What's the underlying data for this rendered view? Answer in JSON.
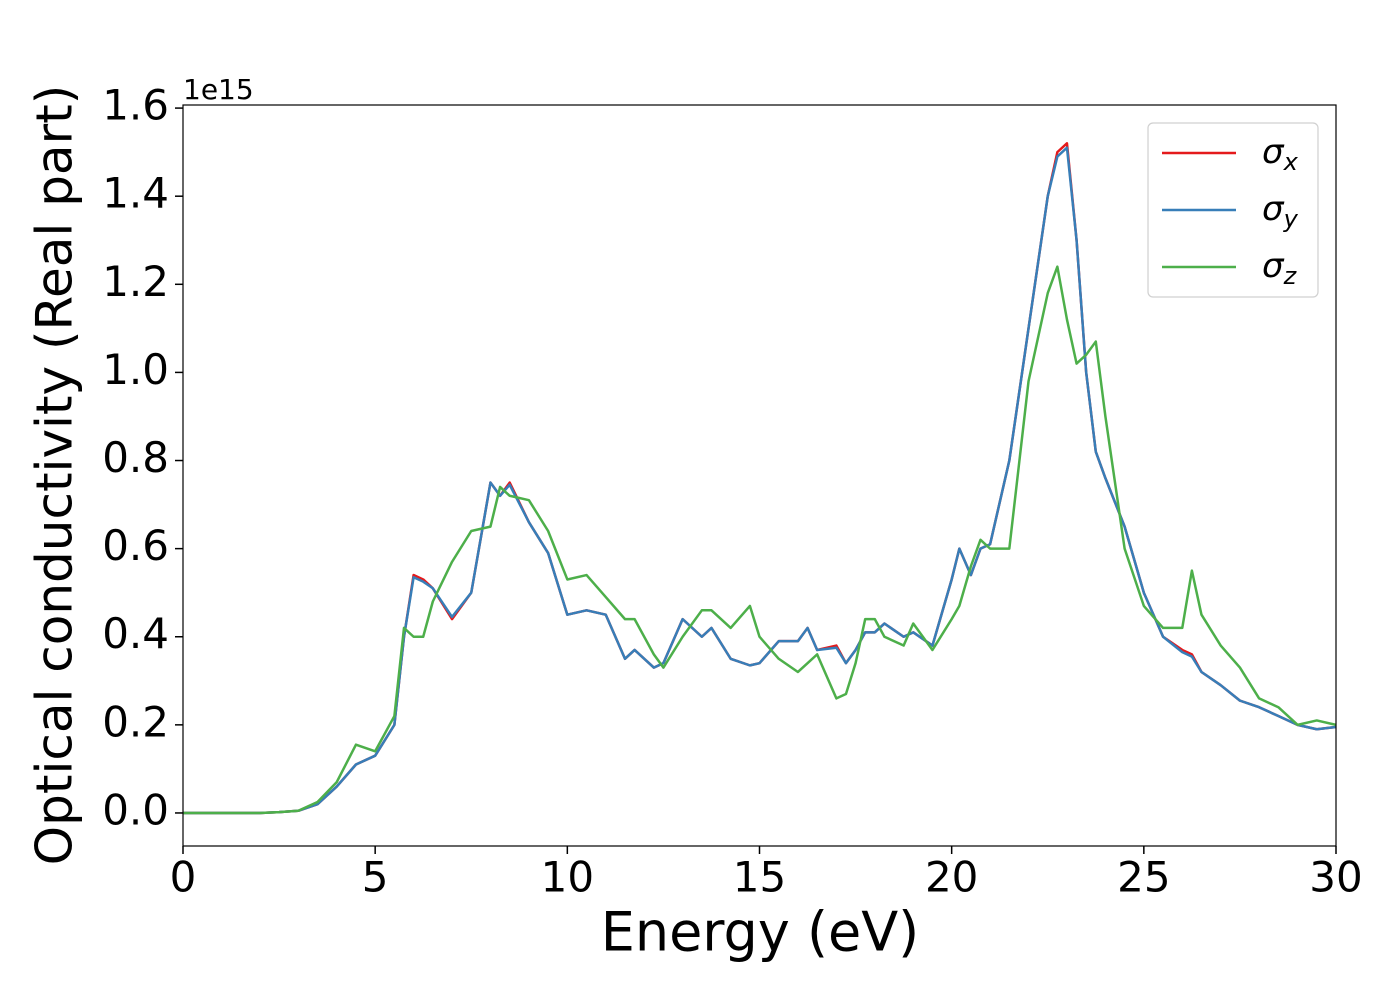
{
  "chart_data": {
    "type": "line",
    "xlabel": "Energy (eV)",
    "ylabel": "Optical conductivity (Real part)",
    "y_offset_label": "1e15",
    "x": [
      0,
      0.5,
      1,
      1.5,
      2,
      2.5,
      3,
      3.5,
      4,
      4.5,
      5,
      5.5,
      5.75,
      6,
      6.25,
      6.5,
      7,
      7.5,
      8,
      8.25,
      8.5,
      9,
      9.5,
      10,
      10.5,
      11,
      11.5,
      11.75,
      12.25,
      12.5,
      13,
      13.5,
      13.75,
      14.25,
      14.75,
      15,
      15.5,
      16,
      16.25,
      16.5,
      17,
      17.25,
      17.5,
      17.75,
      18,
      18.25,
      18.75,
      19,
      19.5,
      20,
      20.2,
      20.5,
      20.75,
      21,
      21.5,
      22,
      22.5,
      22.75,
      23,
      23.25,
      23.5,
      23.75,
      24,
      24.5,
      25,
      25.5,
      26,
      26.25,
      26.5,
      27,
      27.5,
      28,
      28.5,
      29,
      29.5,
      30
    ],
    "series": [
      {
        "name": "σx",
        "color": "#e41a1c",
        "values": [
          0,
          0,
          0,
          0,
          0,
          0.002,
          0.005,
          0.02,
          0.06,
          0.11,
          0.13,
          0.2,
          0.4,
          0.54,
          0.53,
          0.51,
          0.44,
          0.5,
          0.75,
          0.72,
          0.75,
          0.66,
          0.59,
          0.45,
          0.46,
          0.45,
          0.35,
          0.37,
          0.33,
          0.34,
          0.44,
          0.4,
          0.42,
          0.35,
          0.335,
          0.34,
          0.39,
          0.39,
          0.42,
          0.37,
          0.38,
          0.34,
          0.37,
          0.41,
          0.41,
          0.43,
          0.4,
          0.41,
          0.38,
          0.53,
          0.6,
          0.54,
          0.6,
          0.61,
          0.8,
          1.1,
          1.4,
          1.5,
          1.52,
          1.3,
          1.0,
          0.82,
          0.76,
          0.65,
          0.5,
          0.4,
          0.37,
          0.36,
          0.32,
          0.29,
          0.255,
          0.24,
          0.22,
          0.2,
          0.19,
          0.195
        ]
      },
      {
        "name": "σy",
        "color": "#377eb8",
        "values": [
          0,
          0,
          0,
          0,
          0,
          0.002,
          0.005,
          0.02,
          0.06,
          0.11,
          0.13,
          0.2,
          0.4,
          0.535,
          0.525,
          0.51,
          0.445,
          0.5,
          0.75,
          0.72,
          0.745,
          0.66,
          0.59,
          0.45,
          0.46,
          0.45,
          0.35,
          0.37,
          0.33,
          0.34,
          0.44,
          0.4,
          0.42,
          0.35,
          0.335,
          0.34,
          0.39,
          0.39,
          0.42,
          0.37,
          0.375,
          0.34,
          0.37,
          0.41,
          0.41,
          0.43,
          0.4,
          0.41,
          0.38,
          0.53,
          0.6,
          0.54,
          0.6,
          0.61,
          0.8,
          1.1,
          1.4,
          1.49,
          1.51,
          1.3,
          1.0,
          0.82,
          0.76,
          0.65,
          0.5,
          0.4,
          0.365,
          0.355,
          0.32,
          0.29,
          0.255,
          0.24,
          0.22,
          0.2,
          0.19,
          0.195
        ]
      },
      {
        "name": "σz",
        "color": "#4daf4a",
        "values": [
          0,
          0,
          0,
          0,
          0,
          0.002,
          0.005,
          0.025,
          0.07,
          0.155,
          0.14,
          0.22,
          0.42,
          0.4,
          0.4,
          0.48,
          0.57,
          0.64,
          0.65,
          0.74,
          0.72,
          0.71,
          0.64,
          0.53,
          0.54,
          0.49,
          0.44,
          0.44,
          0.36,
          0.33,
          0.4,
          0.46,
          0.46,
          0.42,
          0.47,
          0.4,
          0.35,
          0.32,
          0.34,
          0.36,
          0.26,
          0.27,
          0.34,
          0.44,
          0.44,
          0.4,
          0.38,
          0.43,
          0.37,
          0.44,
          0.47,
          0.56,
          0.62,
          0.6,
          0.6,
          0.98,
          1.18,
          1.24,
          1.12,
          1.02,
          1.04,
          1.07,
          0.9,
          0.6,
          0.47,
          0.42,
          0.42,
          0.55,
          0.45,
          0.38,
          0.33,
          0.26,
          0.24,
          0.2,
          0.21,
          0.2
        ]
      }
    ],
    "xlim": [
      0,
      30
    ],
    "xticks": [
      0,
      5,
      10,
      15,
      20,
      25,
      30
    ],
    "ylim": [
      -0.075,
      1.607
    ],
    "yticks": [
      {
        "value": 0,
        "label": "0.0"
      },
      0.2,
      0.4,
      0.6,
      0.8,
      {
        "value": 1,
        "label": "1.0"
      },
      1.2,
      1.4,
      1.6
    ],
    "grid": false,
    "legend": "upper right"
  }
}
